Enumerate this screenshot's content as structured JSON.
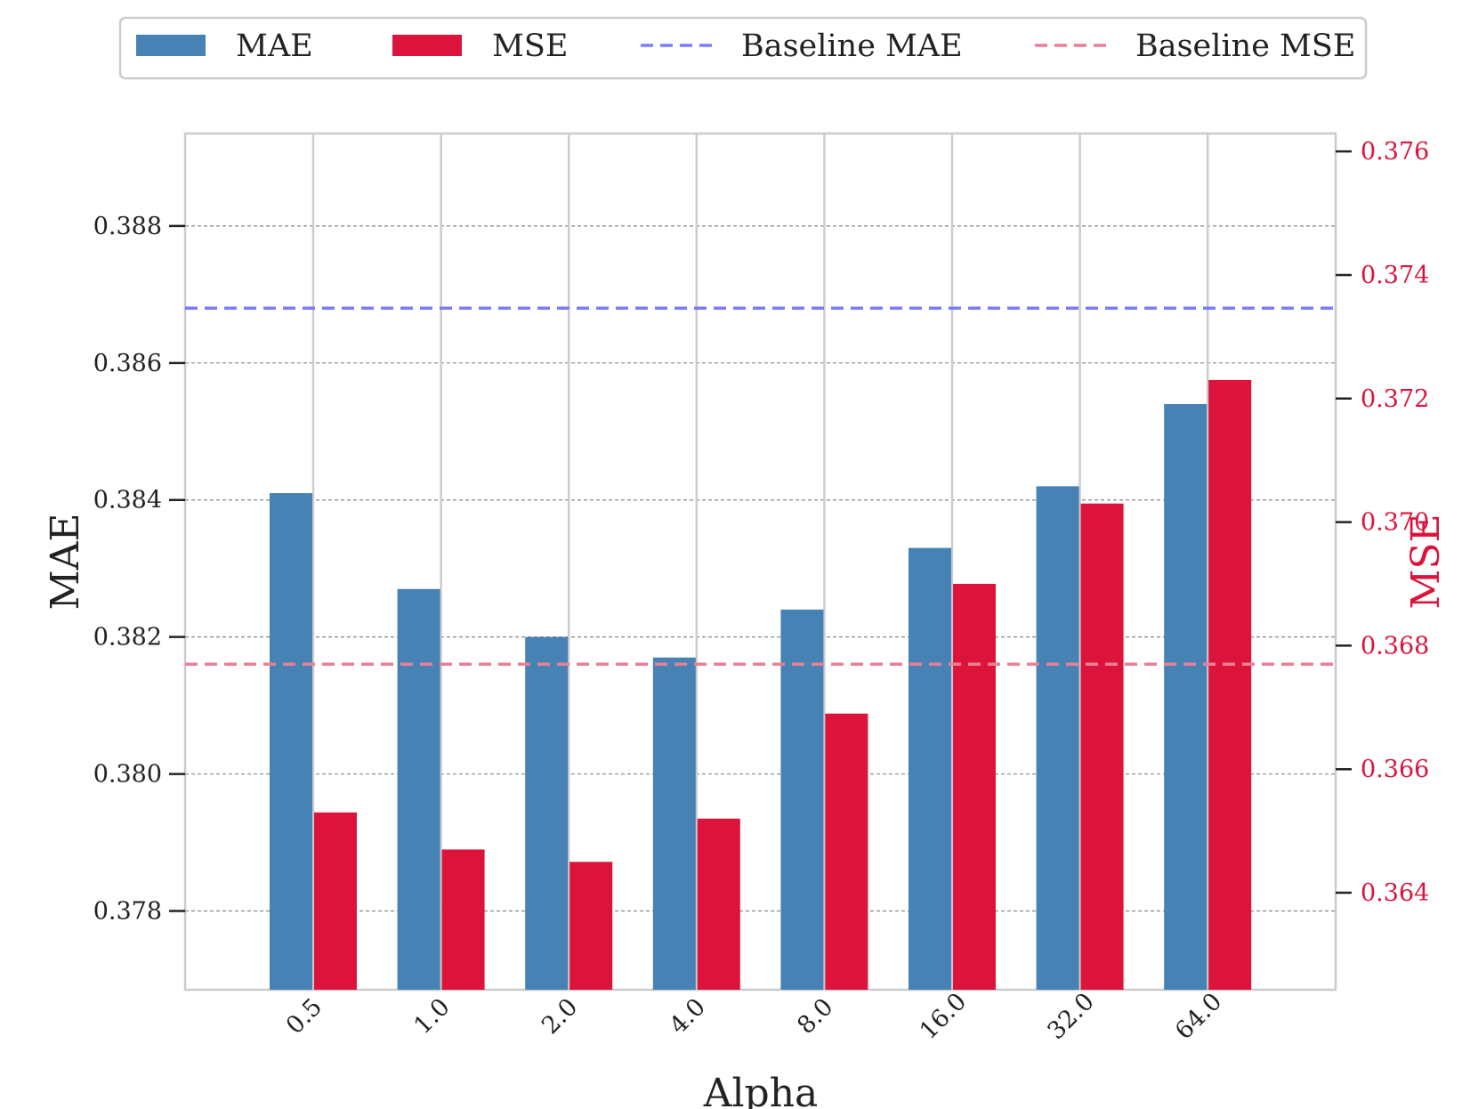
{
  "colors": {
    "mae": "#4682b4",
    "mse": "#dc143c",
    "baseline_mae": "#7b7bff",
    "baseline_mse": "#ea7f95",
    "axis": "#cccccc",
    "grid": "#888888",
    "text": "#222222",
    "right_axis_text": "#dc143c"
  },
  "chart_data": {
    "type": "bar",
    "title": "",
    "xlabel": "Alpha",
    "ylabel": "MAE",
    "y2label": "MSE",
    "categories": [
      "0.5",
      "1.0",
      "2.0",
      "4.0",
      "8.0",
      "16.0",
      "32.0",
      "64.0"
    ],
    "series": [
      {
        "name": "MAE",
        "axis": "left",
        "values": [
          0.3841,
          0.3827,
          0.382,
          0.3817,
          0.3824,
          0.3833,
          0.3842,
          0.3854
        ]
      },
      {
        "name": "MSE",
        "axis": "right",
        "values": [
          0.3653,
          0.3647,
          0.3645,
          0.3652,
          0.3669,
          0.369,
          0.3703,
          0.3723
        ]
      }
    ],
    "baselines": [
      {
        "name": "Baseline MAE",
        "axis": "left",
        "value": 0.3868
      },
      {
        "name": "Baseline MSE",
        "axis": "right",
        "value": 0.3677
      }
    ],
    "ylim": [
      0.37685,
      0.38935
    ],
    "y2lim": [
      0.36243,
      0.37629
    ],
    "yticks": [
      "0.378",
      "0.380",
      "0.382",
      "0.384",
      "0.386",
      "0.388"
    ],
    "y2ticks": [
      "0.364",
      "0.366",
      "0.368",
      "0.370",
      "0.372",
      "0.374",
      "0.376"
    ],
    "grid": true,
    "legend": {
      "placement": "top-center",
      "entries": [
        "MAE",
        "MSE",
        "Baseline MAE",
        "Baseline MSE"
      ]
    }
  }
}
